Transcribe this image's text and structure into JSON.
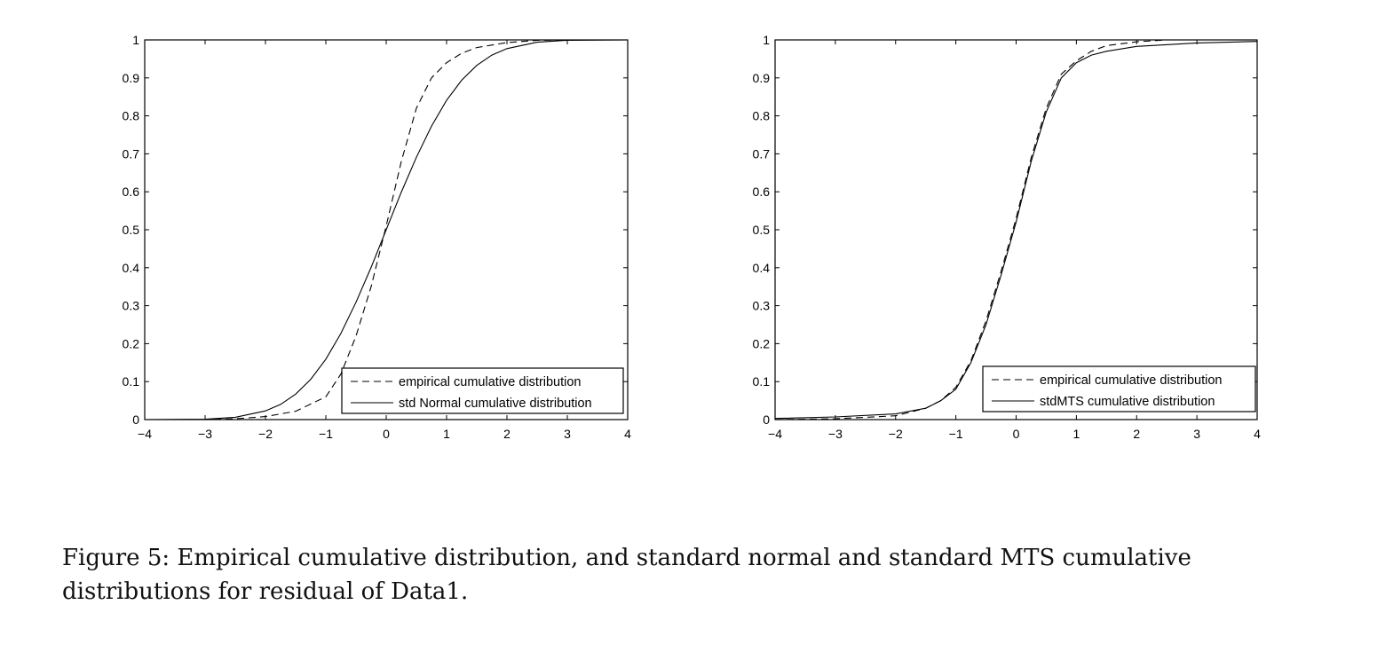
{
  "chart_data": [
    {
      "type": "line",
      "xlim": [
        -4,
        4
      ],
      "ylim": [
        0,
        1
      ],
      "xticks": [
        "−4",
        "−3",
        "−2",
        "−1",
        "0",
        "1",
        "2",
        "3",
        "4"
      ],
      "yticks": [
        "0",
        "0.1",
        "0.2",
        "0.3",
        "0.4",
        "0.5",
        "0.6",
        "0.7",
        "0.8",
        "0.9",
        "1"
      ],
      "grid": false,
      "legend_position": "bottom-right",
      "series": [
        {
          "name": "empirical cumulative distribution",
          "style": "dashed",
          "x": [
            -4,
            -3,
            -2.5,
            -2,
            -1.5,
            -1,
            -0.75,
            -0.5,
            -0.25,
            0,
            0.25,
            0.5,
            0.75,
            1,
            1.25,
            1.5,
            2,
            2.5,
            3,
            4
          ],
          "y": [
            0,
            0,
            0.002,
            0.008,
            0.022,
            0.06,
            0.12,
            0.22,
            0.35,
            0.51,
            0.68,
            0.82,
            0.9,
            0.94,
            0.965,
            0.98,
            0.993,
            0.999,
            1,
            1
          ]
        },
        {
          "name": "std Normal cumulative distribution",
          "style": "solid",
          "x": [
            -4,
            -3,
            -2.5,
            -2,
            -1.75,
            -1.5,
            -1.25,
            -1,
            -0.75,
            -0.5,
            -0.25,
            0,
            0.25,
            0.5,
            0.75,
            1,
            1.25,
            1.5,
            1.75,
            2,
            2.5,
            3,
            4
          ],
          "y": [
            0,
            0.001,
            0.006,
            0.023,
            0.04,
            0.067,
            0.106,
            0.159,
            0.227,
            0.309,
            0.401,
            0.5,
            0.599,
            0.691,
            0.773,
            0.841,
            0.894,
            0.933,
            0.96,
            0.977,
            0.994,
            0.999,
            1
          ]
        }
      ]
    },
    {
      "type": "line",
      "xlim": [
        -4,
        4
      ],
      "ylim": [
        0,
        1
      ],
      "xticks": [
        "−4",
        "−3",
        "−2",
        "−1",
        "0",
        "1",
        "2",
        "3",
        "4"
      ],
      "yticks": [
        "0",
        "0.1",
        "0.2",
        "0.3",
        "0.4",
        "0.5",
        "0.6",
        "0.7",
        "0.8",
        "0.9",
        "1"
      ],
      "grid": false,
      "legend_position": "bottom-right",
      "series": [
        {
          "name": "empirical cumulative distribution",
          "style": "dashed",
          "x": [
            -4,
            -3,
            -2,
            -1.5,
            -1.25,
            -1,
            -0.75,
            -0.5,
            -0.25,
            0,
            0.25,
            0.5,
            0.75,
            1,
            1.25,
            1.5,
            2,
            2.5,
            4
          ],
          "y": [
            0,
            0.002,
            0.01,
            0.03,
            0.05,
            0.085,
            0.155,
            0.26,
            0.39,
            0.53,
            0.69,
            0.82,
            0.91,
            0.945,
            0.97,
            0.985,
            0.995,
            1,
            1
          ]
        },
        {
          "name": "stdMTS cumulative distribution",
          "style": "solid",
          "x": [
            -4,
            -3,
            -2,
            -1.5,
            -1.25,
            -1,
            -0.75,
            -0.5,
            -0.25,
            0,
            0.25,
            0.5,
            0.75,
            1,
            1.25,
            1.5,
            2,
            3,
            4
          ],
          "y": [
            0.003,
            0.007,
            0.015,
            0.03,
            0.05,
            0.08,
            0.15,
            0.25,
            0.38,
            0.52,
            0.68,
            0.81,
            0.9,
            0.94,
            0.96,
            0.97,
            0.983,
            0.992,
            0.996
          ]
        }
      ]
    }
  ],
  "caption": {
    "line1": "Figure 5: Empirical cumulative distribution, and standard normal and standard MTS cumulative",
    "line2": "distributions for residual of Data1."
  }
}
